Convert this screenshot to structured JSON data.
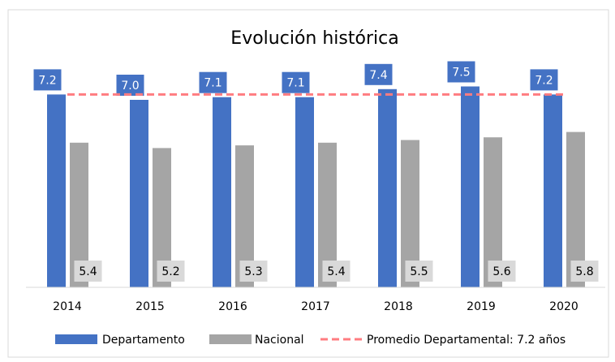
{
  "chart_data": {
    "type": "bar",
    "title": "Evolución histórica",
    "categories": [
      "2014",
      "2015",
      "2016",
      "2017",
      "2018",
      "2019",
      "2020"
    ],
    "series": [
      {
        "name": "Departamento",
        "color": "#4472c4",
        "values": [
          7.2,
          7.0,
          7.1,
          7.1,
          7.4,
          7.5,
          7.2
        ],
        "value_labels": [
          "7.2",
          "7.0",
          "7.1",
          "7.1",
          "7.4",
          "7.5",
          "7.2"
        ]
      },
      {
        "name": "Nacional",
        "color": "#a5a5a5",
        "values": [
          5.4,
          5.2,
          5.3,
          5.4,
          5.5,
          5.6,
          5.8
        ],
        "value_labels": [
          "5.4",
          "5.2",
          "5.3",
          "5.4",
          "5.5",
          "5.6",
          "5.8"
        ]
      }
    ],
    "reference_line": {
      "name": "Promedio Departamental: 7.2 años",
      "value": 7.2,
      "color": "#ff7c80"
    },
    "ylim": [
      0,
      8
    ]
  }
}
